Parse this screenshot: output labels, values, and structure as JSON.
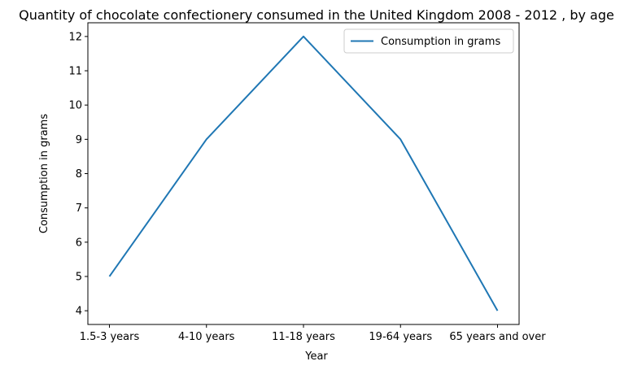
{
  "chart_data": {
    "type": "line",
    "title": "Quantity of chocolate confectionery consumed in the United Kingdom 2008 - 2012 , by age",
    "xlabel": "Year",
    "ylabel": "Consumption in grams",
    "categories": [
      "1.5-3 years",
      "4-10 years",
      "11-18 years",
      "19-64 years",
      "65 years and over"
    ],
    "series": [
      {
        "name": "Consumption in grams",
        "values": [
          5,
          9,
          12,
          9,
          4
        ],
        "color": "#1f77b4"
      }
    ],
    "ylim": [
      3.6,
      12.4
    ],
    "yticks": [
      4,
      5,
      6,
      7,
      8,
      9,
      10,
      11,
      12
    ],
    "grid": false,
    "legend": "top-right"
  }
}
